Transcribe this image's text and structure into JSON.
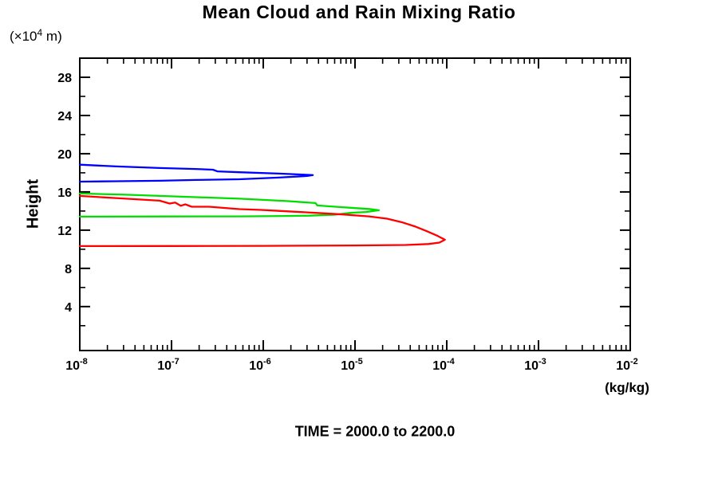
{
  "title": "Mean Cloud and Rain Mixing Ratio",
  "y_unit": {
    "prefix": "(×10",
    "exp": "4",
    "suffix": " m)"
  },
  "y_axis_label": "Height",
  "x_unit": "(kg/kg)",
  "caption": "TIME = 2000.0 to 2200.0",
  "colors": {
    "axis": "#000000",
    "background": "#ffffff"
  },
  "chart_data": {
    "type": "line",
    "title": "Mean Cloud and Rain Mixing Ratio",
    "xlabel": "(kg/kg)",
    "ylabel": "Height (×10^4 m)",
    "x_scale": "log10",
    "xlim_log10": [
      -8,
      -2
    ],
    "x_ticks_exponents": [
      -8,
      -7,
      -6,
      -5,
      -4,
      -3,
      -2
    ],
    "ylim": [
      -0.6,
      30.0
    ],
    "y_major_ticks": [
      4,
      8,
      12,
      16,
      20,
      24,
      28
    ],
    "y_minor_ticks": [
      2,
      6,
      10,
      14,
      18,
      22,
      26,
      30
    ],
    "grid": false,
    "legend": "none",
    "caption": "TIME = 2000.0 to 2200.0",
    "series": [
      {
        "name": "blue",
        "color": "#0000ff",
        "x_format": "log10 of mixing ratio (kg/kg)",
        "peak": {
          "x_log10": -5.46,
          "height": 17.8
        },
        "points": [
          [
            -8.0,
            18.85
          ],
          [
            -7.6,
            18.67
          ],
          [
            -7.13,
            18.5
          ],
          [
            -6.74,
            18.4
          ],
          [
            -6.55,
            18.33
          ],
          [
            -6.5,
            18.15
          ],
          [
            -6.26,
            18.06
          ],
          [
            -5.83,
            17.92
          ],
          [
            -5.6,
            17.83
          ],
          [
            -5.46,
            17.76
          ],
          [
            -5.52,
            17.67
          ],
          [
            -5.83,
            17.5
          ],
          [
            -6.26,
            17.33
          ],
          [
            -6.74,
            17.25
          ],
          [
            -7.13,
            17.17
          ],
          [
            -7.6,
            17.12
          ],
          [
            -8.0,
            17.08
          ]
        ]
      },
      {
        "name": "green",
        "color": "#00dd00",
        "x_format": "log10 of mixing ratio (kg/kg)",
        "peak": {
          "x_log10": -4.74,
          "height": 14.1
        },
        "points": [
          [
            -8.0,
            15.83
          ],
          [
            -7.5,
            15.71
          ],
          [
            -7.13,
            15.58
          ],
          [
            -6.7,
            15.44
          ],
          [
            -6.26,
            15.29
          ],
          [
            -5.74,
            15.04
          ],
          [
            -5.43,
            14.83
          ],
          [
            -5.41,
            14.58
          ],
          [
            -5.2,
            14.44
          ],
          [
            -5.0,
            14.31
          ],
          [
            -4.85,
            14.22
          ],
          [
            -4.74,
            14.08
          ],
          [
            -4.88,
            13.9
          ],
          [
            -5.05,
            13.81
          ],
          [
            -5.22,
            13.62
          ],
          [
            -5.5,
            13.52
          ],
          [
            -5.74,
            13.48
          ],
          [
            -6.26,
            13.44
          ],
          [
            -7.0,
            13.43
          ],
          [
            -8.0,
            13.42
          ]
        ]
      },
      {
        "name": "red",
        "color": "#ff0000",
        "x_format": "log10 of mixing ratio (kg/kg)",
        "peak": {
          "x_log10": -4.02,
          "height": 11.0
        },
        "points": [
          [
            -8.0,
            15.58
          ],
          [
            -7.57,
            15.33
          ],
          [
            -7.13,
            15.08
          ],
          [
            -7.02,
            14.78
          ],
          [
            -6.96,
            14.88
          ],
          [
            -6.9,
            14.55
          ],
          [
            -6.85,
            14.7
          ],
          [
            -6.78,
            14.45
          ],
          [
            -6.59,
            14.45
          ],
          [
            -6.26,
            14.2
          ],
          [
            -6.02,
            14.12
          ],
          [
            -5.83,
            14.02
          ],
          [
            -5.43,
            13.81
          ],
          [
            -5.13,
            13.64
          ],
          [
            -4.85,
            13.44
          ],
          [
            -4.65,
            13.2
          ],
          [
            -4.48,
            12.8
          ],
          [
            -4.35,
            12.4
          ],
          [
            -4.22,
            11.9
          ],
          [
            -4.1,
            11.4
          ],
          [
            -4.02,
            11.0
          ],
          [
            -4.08,
            10.7
          ],
          [
            -4.2,
            10.55
          ],
          [
            -4.45,
            10.45
          ],
          [
            -5.0,
            10.4
          ],
          [
            -6.0,
            10.36
          ],
          [
            -7.0,
            10.34
          ],
          [
            -8.0,
            10.33
          ]
        ]
      }
    ]
  }
}
